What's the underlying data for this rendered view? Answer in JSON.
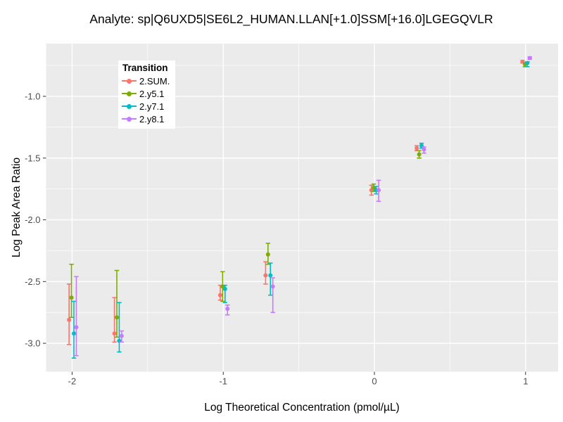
{
  "chart_data": {
    "type": "scatter",
    "title": "Analyte: sp|Q6UXD5|SE6L2_HUMAN.LLAN[+1.0]SSM[+16.0]LGEGQVLR",
    "xlabel": "Log Theoretical Concentration (pmol/µL)",
    "ylabel": "Log Peak Area Ratio",
    "xlim": [
      -2.172,
      1.215
    ],
    "ylim": [
      -3.23,
      -0.573
    ],
    "x_ticks": [
      -2,
      -1,
      0,
      1
    ],
    "x_tick_labels": [
      "-2",
      "-1",
      "0",
      "1"
    ],
    "y_ticks": [
      -1.0,
      -1.5,
      -2.0,
      -2.5,
      -3.0
    ],
    "y_tick_labels": [
      "-1.0",
      "-1.5",
      "-2.0",
      "-2.5",
      "-3.0"
    ],
    "x_minor": [
      -1.5,
      -0.5,
      0.5
    ],
    "y_minor": [
      -0.75,
      -1.25,
      -1.75,
      -2.25,
      -2.75
    ],
    "grid": "on",
    "panel_bg": "#EBEBEB",
    "grid_color": "#FFFFFF",
    "tick_color": "#333333",
    "tick_label_color": "#4D4D4D",
    "legend": {
      "title": "Transition",
      "position": "top-left-inside"
    },
    "series": [
      {
        "name": "2.SUM.",
        "color": "#F8766D",
        "dodge": -0.02,
        "points": [
          {
            "x": -2,
            "y": -2.81,
            "lo": -3.01,
            "hi": -2.52
          },
          {
            "x": -1.7,
            "y": -2.92,
            "lo": -2.99,
            "hi": -2.63
          },
          {
            "x": -1,
            "y": -2.61,
            "lo": -2.65,
            "hi": -2.53
          },
          {
            "x": -0.7,
            "y": -2.45,
            "lo": -2.52,
            "hi": -2.34
          },
          {
            "x": 0,
            "y": -1.76,
            "lo": -1.8,
            "hi": -1.72
          },
          {
            "x": 0.3,
            "y": -1.42,
            "lo": -1.44,
            "hi": -1.4
          },
          {
            "x": 1,
            "y": -0.72,
            "lo": -0.73,
            "hi": -0.71
          }
        ]
      },
      {
        "name": "2.y5.1",
        "color": "#7CAE00",
        "dodge": -0.004,
        "points": [
          {
            "x": -2,
            "y": -2.63,
            "lo": -2.79,
            "hi": -2.36
          },
          {
            "x": -1.7,
            "y": -2.79,
            "lo": -2.95,
            "hi": -2.41
          },
          {
            "x": -1,
            "y": -2.54,
            "lo": -2.66,
            "hi": -2.42
          },
          {
            "x": -0.7,
            "y": -2.28,
            "lo": -2.36,
            "hi": -2.19
          },
          {
            "x": 0,
            "y": -1.74,
            "lo": -1.77,
            "hi": -1.71
          },
          {
            "x": 0.3,
            "y": -1.47,
            "lo": -1.5,
            "hi": -1.44
          },
          {
            "x": 1,
            "y": -0.74,
            "lo": -0.76,
            "hi": -0.73
          }
        ]
      },
      {
        "name": "2.y7.1",
        "color": "#00BFC4",
        "dodge": 0.012,
        "points": [
          {
            "x": -2,
            "y": -2.92,
            "lo": -3.12,
            "hi": -2.66
          },
          {
            "x": -1.7,
            "y": -2.98,
            "lo": -3.07,
            "hi": -2.67
          },
          {
            "x": -1,
            "y": -2.56,
            "lo": -2.67,
            "hi": -2.53
          },
          {
            "x": -0.7,
            "y": -2.45,
            "lo": -2.61,
            "hi": -2.35
          },
          {
            "x": 0,
            "y": -1.76,
            "lo": -1.79,
            "hi": -1.73
          },
          {
            "x": 0.3,
            "y": -1.4,
            "lo": -1.42,
            "hi": -1.38
          },
          {
            "x": 1,
            "y": -0.73,
            "lo": -0.76,
            "hi": -0.72
          }
        ]
      },
      {
        "name": "2.y8.1",
        "color": "#C77CFF",
        "dodge": 0.028,
        "points": [
          {
            "x": -2,
            "y": -2.87,
            "lo": -3.1,
            "hi": -2.46
          },
          {
            "x": -1.7,
            "y": -2.94,
            "lo": -2.99,
            "hi": -2.9
          },
          {
            "x": -1,
            "y": -2.72,
            "lo": -2.77,
            "hi": -2.69
          },
          {
            "x": -0.7,
            "y": -2.54,
            "lo": -2.75,
            "hi": -2.47
          },
          {
            "x": 0,
            "y": -1.76,
            "lo": -1.85,
            "hi": -1.68
          },
          {
            "x": 0.3,
            "y": -1.43,
            "lo": -1.46,
            "hi": -1.41
          },
          {
            "x": 1,
            "y": -0.69,
            "lo": -0.7,
            "hi": -0.68
          }
        ]
      }
    ]
  }
}
